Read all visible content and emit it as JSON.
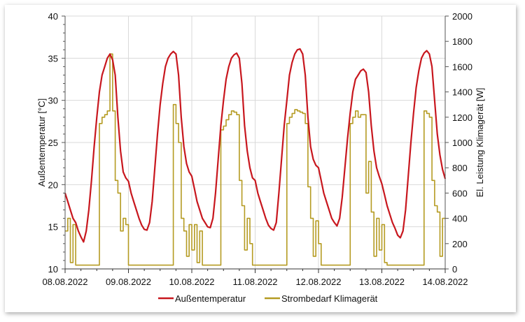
{
  "chart_data": {
    "type": "line",
    "title": "",
    "ylabel_left": "Außentemperatur [°C]",
    "ylabel_right": "El. Leistung Klimagerät [W]",
    "ylim_left": [
      10,
      40
    ],
    "ylim_right": [
      0,
      2000
    ],
    "yticks_left": [
      "10",
      "15",
      "20",
      "25",
      "30",
      "35",
      "40"
    ],
    "yticks_right": [
      "0",
      "200",
      "400",
      "600",
      "800",
      "1000",
      "1200",
      "1400",
      "1600",
      "1800",
      "2000"
    ],
    "xlim": [
      "08.08.2022",
      "14.08.2022"
    ],
    "xticks": [
      "08.08.2022",
      "09.08.2022",
      "10.08.2022",
      "11.08.2022",
      "12.08.2022",
      "13.08.2022",
      "14.08.2022"
    ],
    "x_resolution": "hourly",
    "grid": true,
    "legend_position": "bottom",
    "colors": {
      "temperature": "#c8171e",
      "power": "#b59b22",
      "grid": "#d9d9d9"
    },
    "series": [
      {
        "name": "Außentemperatur",
        "axis": "left",
        "values": [
          19.0,
          18.0,
          17.0,
          16.0,
          15.5,
          14.5,
          13.8,
          13.2,
          14.5,
          17.0,
          20.5,
          24.5,
          28.0,
          31.0,
          33.0,
          34.0,
          35.0,
          35.5,
          34.8,
          33.0,
          28.0,
          24.0,
          21.5,
          20.8,
          20.4,
          19.0,
          18.0,
          17.0,
          16.0,
          15.2,
          14.7,
          14.6,
          15.5,
          18.0,
          22.0,
          26.0,
          29.5,
          32.0,
          34.0,
          35.0,
          35.5,
          35.8,
          35.5,
          33.0,
          28.0,
          24.5,
          22.5,
          21.5,
          21.0,
          19.5,
          18.0,
          17.0,
          16.0,
          15.5,
          15.0,
          14.9,
          16.0,
          19.0,
          23.0,
          27.0,
          30.0,
          32.5,
          34.0,
          35.0,
          35.4,
          35.6,
          35.0,
          32.0,
          27.0,
          24.0,
          22.0,
          20.8,
          20.5,
          19.0,
          18.0,
          17.0,
          16.0,
          15.2,
          14.8,
          14.6,
          15.5,
          19.0,
          23.0,
          27.0,
          30.0,
          33.0,
          34.5,
          35.5,
          36.0,
          36.1,
          35.5,
          33.0,
          28.0,
          24.5,
          23.0,
          22.3,
          22.0,
          20.5,
          19.0,
          18.0,
          17.0,
          16.0,
          15.5,
          15.1,
          16.0,
          18.5,
          22.0,
          25.5,
          28.5,
          31.0,
          32.5,
          33.0,
          33.5,
          33.7,
          33.3,
          31.0,
          27.0,
          24.0,
          22.0,
          21.0,
          20.1,
          18.8,
          17.5,
          16.5,
          15.5,
          14.8,
          14.0,
          13.7,
          14.5,
          17.0,
          21.0,
          25.0,
          28.5,
          31.5,
          33.5,
          35.0,
          35.6,
          35.9,
          35.5,
          34.0,
          30.0,
          26.0,
          23.5,
          21.8,
          20.7
        ]
      },
      {
        "name": "Strombedarf Klimagerät",
        "axis": "right",
        "values": [
          300,
          400,
          50,
          350,
          30,
          30,
          30,
          30,
          30,
          30,
          30,
          30,
          30,
          1150,
          1200,
          1220,
          1250,
          1700,
          1250,
          700,
          600,
          300,
          400,
          350,
          30,
          30,
          30,
          30,
          30,
          30,
          30,
          30,
          30,
          30,
          30,
          30,
          30,
          30,
          30,
          30,
          30,
          1300,
          1150,
          1000,
          400,
          300,
          100,
          350,
          150,
          350,
          50,
          300,
          30,
          30,
          30,
          30,
          30,
          30,
          30,
          1100,
          1130,
          1180,
          1220,
          1250,
          1240,
          1220,
          700,
          500,
          150,
          400,
          200,
          30,
          30,
          30,
          30,
          30,
          30,
          30,
          30,
          30,
          30,
          30,
          30,
          30,
          1150,
          1200,
          1230,
          1260,
          1250,
          1240,
          1230,
          1150,
          650,
          400,
          100,
          380,
          200,
          30,
          30,
          30,
          30,
          30,
          30,
          30,
          30,
          30,
          30,
          30,
          1150,
          1200,
          1250,
          1200,
          1220,
          1220,
          600,
          850,
          450,
          100,
          400,
          150,
          350,
          50,
          30,
          30,
          30,
          30,
          30,
          30,
          30,
          30,
          30,
          30,
          30,
          30,
          30,
          30,
          1250,
          1230,
          1200,
          700,
          500,
          450,
          100,
          400,
          400
        ]
      }
    ]
  }
}
